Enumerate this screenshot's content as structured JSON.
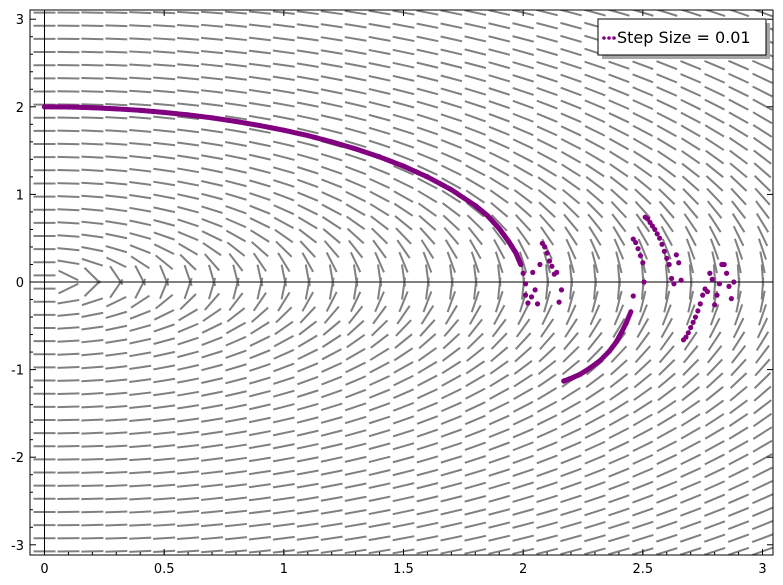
{
  "chart_data": {
    "type": "scatter",
    "title": "",
    "xlabel": "",
    "ylabel": "",
    "xlim": [
      0,
      3
    ],
    "ylim": [
      -3,
      3
    ],
    "x_ticks": [
      "0",
      "0.5",
      "1",
      "1.5",
      "2",
      "2.5",
      "3"
    ],
    "y_ticks": [
      "-3",
      "-2",
      "-1",
      "0",
      "1",
      "2",
      "3"
    ],
    "grid": false,
    "legend": {
      "position": "top-right",
      "entries": [
        "Step Size = 0.01"
      ]
    },
    "colors": {
      "series": "#800080",
      "slope_field": "#808080",
      "axes": "#000000"
    },
    "slope_field": {
      "function": "dy/dx = -x/y",
      "spacing_x": 0.1,
      "spacing_y": 0.15
    },
    "series": [
      {
        "name": "Step Size = 0.01",
        "points": [
          [
            0,
            2.0
          ],
          [
            0.1,
            1.998
          ],
          [
            0.2,
            1.99
          ],
          [
            0.3,
            1.977
          ],
          [
            0.4,
            1.96
          ],
          [
            0.5,
            1.936
          ],
          [
            0.6,
            1.908
          ],
          [
            0.7,
            1.874
          ],
          [
            0.8,
            1.833
          ],
          [
            0.9,
            1.786
          ],
          [
            1.0,
            1.733
          ],
          [
            1.1,
            1.672
          ],
          [
            1.2,
            1.6
          ],
          [
            1.3,
            1.52
          ],
          [
            1.4,
            1.428
          ],
          [
            1.5,
            1.323
          ],
          [
            1.6,
            1.2
          ],
          [
            1.7,
            1.054
          ],
          [
            1.8,
            0.872
          ],
          [
            1.85,
            0.76
          ],
          [
            1.9,
            0.61
          ],
          [
            1.94,
            0.46
          ],
          [
            1.97,
            0.33
          ],
          [
            1.99,
            0.2
          ],
          [
            2.0,
            0.1
          ],
          [
            2.01,
            -0.02
          ],
          [
            2.01,
            -0.15
          ],
          [
            2.02,
            -0.24
          ],
          [
            2.035,
            -0.17
          ],
          [
            2.04,
            0.11
          ],
          [
            2.05,
            -0.09
          ],
          [
            2.06,
            -0.25
          ],
          [
            2.07,
            0.2
          ],
          [
            2.08,
            0.44
          ],
          [
            2.09,
            0.4
          ],
          [
            2.1,
            0.33
          ],
          [
            2.11,
            0.24
          ],
          [
            2.12,
            0.18
          ],
          [
            2.13,
            0.09
          ],
          [
            2.14,
            0.11
          ],
          [
            2.15,
            -0.23
          ],
          [
            2.16,
            -0.09
          ],
          [
            2.17,
            -1.13
          ],
          [
            2.2,
            -1.1
          ],
          [
            2.24,
            -1.05
          ],
          [
            2.28,
            -0.98
          ],
          [
            2.32,
            -0.9
          ],
          [
            2.36,
            -0.79
          ],
          [
            2.39,
            -0.68
          ],
          [
            2.41,
            -0.58
          ],
          [
            2.43,
            -0.47
          ],
          [
            2.45,
            -0.34
          ],
          [
            2.46,
            -0.16
          ],
          [
            2.46,
            0.49
          ],
          [
            2.47,
            0.45
          ],
          [
            2.48,
            0.38
          ],
          [
            2.49,
            0.3
          ],
          [
            2.5,
            0.22
          ],
          [
            2.505,
            0.0
          ],
          [
            2.51,
            0.74
          ],
          [
            2.52,
            0.72
          ],
          [
            2.53,
            0.68
          ],
          [
            2.54,
            0.64
          ],
          [
            2.55,
            0.6
          ],
          [
            2.56,
            0.55
          ],
          [
            2.57,
            0.5
          ],
          [
            2.58,
            0.43
          ],
          [
            2.59,
            0.35
          ],
          [
            2.6,
            0.27
          ],
          [
            2.61,
            0.2
          ],
          [
            2.62,
            0.04
          ],
          [
            2.63,
            -0.02
          ],
          [
            2.64,
            0.31
          ],
          [
            2.65,
            0.22
          ],
          [
            2.66,
            0.02
          ],
          [
            2.67,
            -0.66
          ],
          [
            2.68,
            -0.63
          ],
          [
            2.69,
            -0.58
          ],
          [
            2.7,
            -0.52
          ],
          [
            2.71,
            -0.46
          ],
          [
            2.72,
            -0.4
          ],
          [
            2.73,
            -0.33
          ],
          [
            2.74,
            -0.25
          ],
          [
            2.75,
            -0.15
          ],
          [
            2.76,
            -0.08
          ],
          [
            2.77,
            -0.11
          ],
          [
            2.78,
            0.1
          ],
          [
            2.79,
            0.03
          ],
          [
            2.8,
            -0.26
          ],
          [
            2.81,
            -0.15
          ],
          [
            2.82,
            -0.02
          ],
          [
            2.83,
            0.2
          ],
          [
            2.84,
            0.2
          ],
          [
            2.85,
            0.1
          ],
          [
            2.86,
            -0.05
          ],
          [
            2.87,
            -0.19
          ],
          [
            2.88,
            0.0
          ]
        ]
      }
    ]
  }
}
